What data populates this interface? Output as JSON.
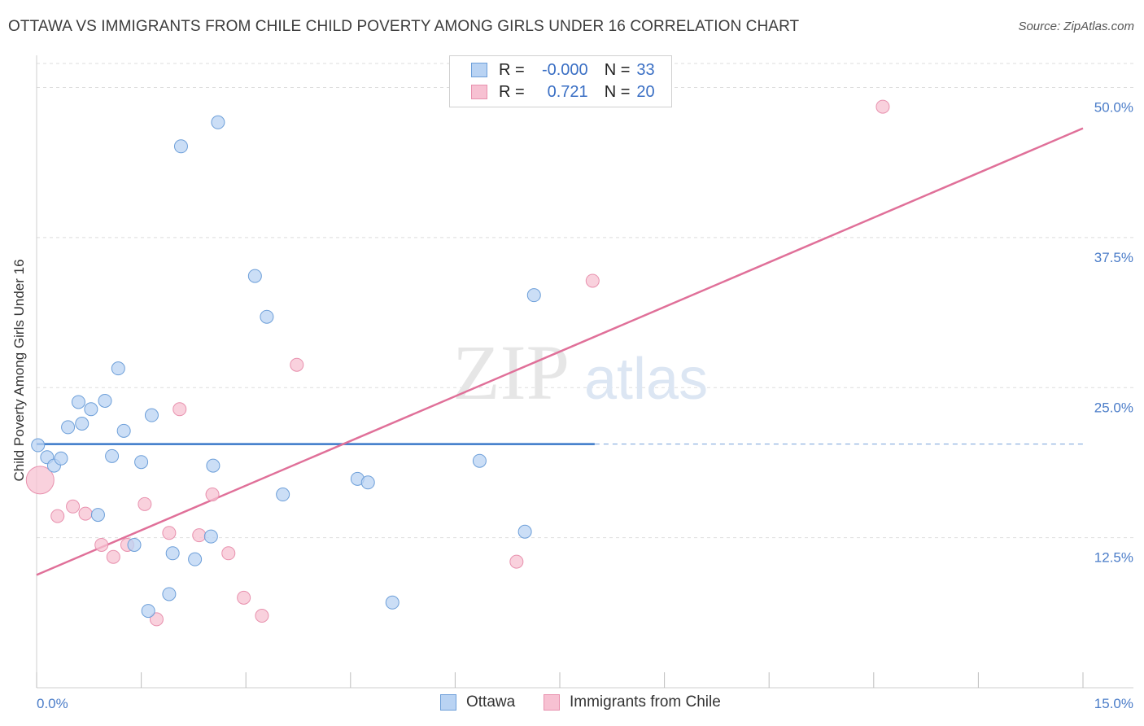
{
  "title": "OTTAWA VS IMMIGRANTS FROM CHILE CHILD POVERTY AMONG GIRLS UNDER 16 CORRELATION CHART",
  "source": "Source: ZipAtlas.com",
  "watermark": {
    "zip": "ZIP",
    "atlas": "atlas"
  },
  "colors": {
    "ottawa_fill": "#b9d3f3",
    "ottawa_stroke": "#6d9fd9",
    "ottawa_line": "#3a78c9",
    "chile_fill": "#f7c1d2",
    "chile_stroke": "#e891ae",
    "chile_line": "#e07099",
    "tick_text": "#4a7cc8",
    "grid": "#dedede"
  },
  "legend": {
    "rows": [
      {
        "r_label": "R =",
        "r_value": "-0.000",
        "n_label": "N =",
        "n_value": "33"
      },
      {
        "r_label": "R =",
        "r_value": "0.721",
        "n_label": "N =",
        "n_value": "20"
      }
    ]
  },
  "bottom_legend": {
    "ottawa": "Ottawa",
    "chile": "Immigrants from Chile"
  },
  "chart_data": {
    "type": "scatter",
    "title": "OTTAWA VS IMMIGRANTS FROM CHILE CHILD POVERTY AMONG GIRLS UNDER 16 CORRELATION CHART",
    "xlabel": "",
    "ylabel": "Child Poverty Among Girls Under 16",
    "xlim": [
      0,
      15
    ],
    "ylim": [
      0,
      52
    ],
    "x_tick_labels": [
      "0.0%",
      "15.0%"
    ],
    "y_ticks": [
      12.5,
      25.0,
      37.5,
      50.0
    ],
    "y_tick_labels": [
      "12.5%",
      "25.0%",
      "37.5%",
      "50.0%"
    ],
    "grid": true,
    "series": [
      {
        "name": "Ottawa",
        "points": [
          [
            0.02,
            20.2
          ],
          [
            0.15,
            19.2
          ],
          [
            0.25,
            18.5
          ],
          [
            0.35,
            19.1
          ],
          [
            0.45,
            21.7
          ],
          [
            0.6,
            23.8
          ],
          [
            0.65,
            22.0
          ],
          [
            0.78,
            23.2
          ],
          [
            0.88,
            14.4
          ],
          [
            0.98,
            23.9
          ],
          [
            1.08,
            19.3
          ],
          [
            1.17,
            26.6
          ],
          [
            1.25,
            21.4
          ],
          [
            1.4,
            11.9
          ],
          [
            1.5,
            18.8
          ],
          [
            1.6,
            6.4
          ],
          [
            1.65,
            22.7
          ],
          [
            1.9,
            7.8
          ],
          [
            1.95,
            11.2
          ],
          [
            2.07,
            45.1
          ],
          [
            2.27,
            10.7
          ],
          [
            2.5,
            12.6
          ],
          [
            2.53,
            18.5
          ],
          [
            2.6,
            47.1
          ],
          [
            3.13,
            34.3
          ],
          [
            3.3,
            30.9
          ],
          [
            3.53,
            16.1
          ],
          [
            4.6,
            17.4
          ],
          [
            4.75,
            17.1
          ],
          [
            5.1,
            7.1
          ],
          [
            6.35,
            18.9
          ],
          [
            7.0,
            13.0
          ],
          [
            7.13,
            32.7
          ]
        ],
        "trend": {
          "x": [
            0,
            8.0
          ],
          "y": [
            20.3,
            20.3
          ],
          "dashed_extension_to": 15
        }
      },
      {
        "name": "Immigrants from Chile",
        "points": [
          [
            0.05,
            17.3
          ],
          [
            0.3,
            14.3
          ],
          [
            0.52,
            15.1
          ],
          [
            0.7,
            14.5
          ],
          [
            0.93,
            11.9
          ],
          [
            1.1,
            10.9
          ],
          [
            1.3,
            11.9
          ],
          [
            1.55,
            15.3
          ],
          [
            1.72,
            5.7
          ],
          [
            1.9,
            12.9
          ],
          [
            2.05,
            23.2
          ],
          [
            2.33,
            12.7
          ],
          [
            2.52,
            16.1
          ],
          [
            2.75,
            11.2
          ],
          [
            2.97,
            7.5
          ],
          [
            3.23,
            6.0
          ],
          [
            3.73,
            26.9
          ],
          [
            6.88,
            10.5
          ],
          [
            7.97,
            33.9
          ],
          [
            12.13,
            48.4
          ]
        ],
        "trend": {
          "x": [
            0,
            15
          ],
          "y": [
            9.4,
            46.6
          ]
        }
      }
    ]
  }
}
